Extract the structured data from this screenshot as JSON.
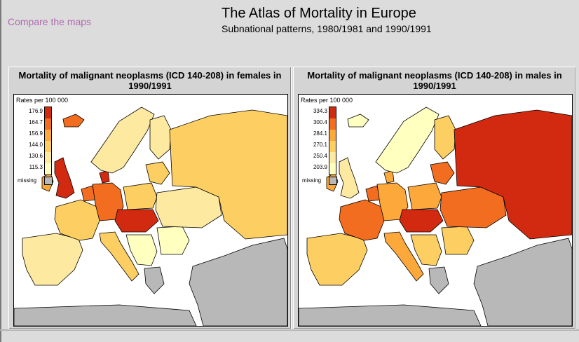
{
  "nav": {
    "compare_link": "Compare the maps"
  },
  "header": {
    "title": "The Atlas of Mortality in Europe",
    "subtitle": "Subnational patterns, 1980/1981 and 1990/1991"
  },
  "colors": {
    "level_1": "#ffffc0",
    "level_2": "#fee9a0",
    "level_3": "#fdcf62",
    "level_4": "#fca83a",
    "level_5": "#f26d1f",
    "level_6": "#d12a10",
    "missing": "#b8b8b8",
    "sea": "#ffffff",
    "outline": "#000000"
  },
  "maps": [
    {
      "title": "Mortality of malignant neoplasms (ICD 140-208) in females in 1990/1991",
      "legend": {
        "title": "Rates per  100 000",
        "breaks": [
          "176.9",
          "164.7",
          "156.9",
          "144.0",
          "130.6",
          "115.3"
        ],
        "missing_label": "missing"
      },
      "region_levels": {
        "uk": 6,
        "ireland": 4,
        "iceland": 5,
        "iberia": 2,
        "france": 3,
        "benelux": 5,
        "germany": 5,
        "denmark": 6,
        "scandinavia": 2,
        "finland": 2,
        "baltics": 3,
        "poland": 3,
        "czech_hungary": 6,
        "italy": 3,
        "balkans": 1,
        "ukraine": 2,
        "russia": 3,
        "romania_bulgaria": 1,
        "turkey_caucasus": 0,
        "north_africa": 0,
        "greece": 0
      }
    },
    {
      "title": "Mortality of malignant neoplasms (ICD 140-208) in males in 1990/1991",
      "legend": {
        "title": "Rates per  100 000",
        "breaks": [
          "334.3",
          "300.4",
          "284.1",
          "270.1",
          "250.4",
          "203.9"
        ],
        "missing_label": "missing"
      },
      "region_levels": {
        "uk": 2,
        "ireland": 4,
        "iceland": 1,
        "iberia": 3,
        "france": 5,
        "benelux": 5,
        "germany": 4,
        "denmark": 4,
        "scandinavia": 1,
        "finland": 3,
        "baltics": 5,
        "poland": 4,
        "czech_hungary": 6,
        "italy": 4,
        "balkans": 3,
        "ukraine": 5,
        "russia": 6,
        "romania_bulgaria": 3,
        "turkey_caucasus": 0,
        "north_africa": 0,
        "greece": 0
      }
    }
  ]
}
